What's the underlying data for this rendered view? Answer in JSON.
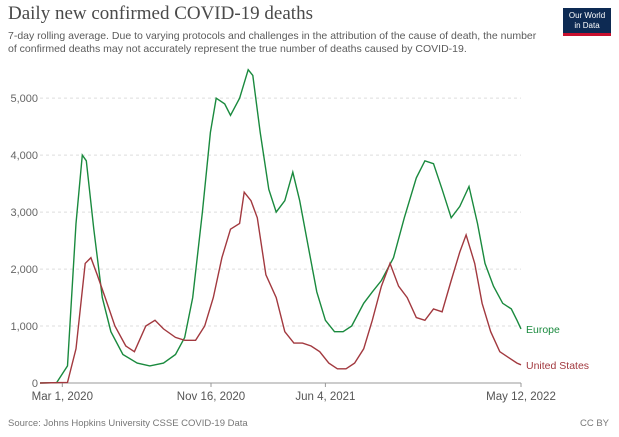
{
  "chart_data": {
    "type": "line",
    "title": "Daily new confirmed COVID-19 deaths",
    "subtitle": [
      "7-day rolling average. Due to varying protocols and challenges in the attribution of the cause of death, the number",
      "of confirmed deaths may not accurately represent the true number of deaths caused by COVID-19."
    ],
    "logo": [
      "Our World",
      "in Data"
    ],
    "source": "Source: Johns Hopkins University CSSE COVID-19 Data",
    "license": "CC BY",
    "xlim": [
      "2020-01-22",
      "2022-05-12"
    ],
    "xticks": [
      {
        "value": "2020-03-01",
        "label": "Mar 1, 2020"
      },
      {
        "value": "2020-11-16",
        "label": "Nov 16, 2020"
      },
      {
        "value": "2021-06-04",
        "label": "Jun 4, 2021"
      },
      {
        "value": "2022-05-12",
        "label": "May 12, 2022"
      }
    ],
    "ylim": [
      0,
      5600
    ],
    "yticks": [
      0,
      {
        "value": 1000,
        "label": "1,000"
      },
      {
        "value": 2000,
        "label": "2,000"
      },
      {
        "value": 3000,
        "label": "3,000"
      },
      {
        "value": 4000,
        "label": "4,000"
      },
      {
        "value": 5000,
        "label": "5,000"
      }
    ],
    "grid": true,
    "series": [
      {
        "name": "Europe",
        "color": "#1a8a3e",
        "x": [
          "2020-01-22",
          "2020-02-20",
          "2020-03-10",
          "2020-03-25",
          "2020-04-05",
          "2020-04-12",
          "2020-04-25",
          "2020-05-10",
          "2020-05-25",
          "2020-06-15",
          "2020-07-10",
          "2020-08-01",
          "2020-08-25",
          "2020-09-15",
          "2020-10-01",
          "2020-10-15",
          "2020-11-01",
          "2020-11-15",
          "2020-11-25",
          "2020-12-10",
          "2020-12-20",
          "2021-01-05",
          "2021-01-20",
          "2021-01-28",
          "2021-02-10",
          "2021-02-25",
          "2021-03-10",
          "2021-03-25",
          "2021-04-08",
          "2021-04-20",
          "2021-05-05",
          "2021-05-20",
          "2021-06-04",
          "2021-06-20",
          "2021-07-05",
          "2021-07-20",
          "2021-08-10",
          "2021-08-25",
          "2021-09-10",
          "2021-10-01",
          "2021-10-20",
          "2021-11-10",
          "2021-11-25",
          "2021-12-10",
          "2021-12-25",
          "2022-01-10",
          "2022-01-25",
          "2022-02-10",
          "2022-02-25",
          "2022-03-10",
          "2022-03-25",
          "2022-04-10",
          "2022-04-25",
          "2022-05-05",
          "2022-05-12"
        ],
        "values": [
          0,
          5,
          300,
          2800,
          4000,
          3900,
          2700,
          1500,
          900,
          500,
          350,
          300,
          350,
          500,
          800,
          1500,
          3000,
          4400,
          5000,
          4900,
          4700,
          5000,
          5500,
          5400,
          4400,
          3400,
          3000,
          3200,
          3700,
          3200,
          2400,
          1600,
          1100,
          900,
          900,
          1000,
          1400,
          1600,
          1800,
          2200,
          2900,
          3600,
          3900,
          3850,
          3400,
          2900,
          3100,
          3450,
          2800,
          2100,
          1700,
          1400,
          1300,
          1100,
          950
        ]
      },
      {
        "name": "United States",
        "color": "#a2393f",
        "x": [
          "2020-01-22",
          "2020-03-10",
          "2020-03-25",
          "2020-04-10",
          "2020-04-20",
          "2020-05-01",
          "2020-05-15",
          "2020-06-01",
          "2020-06-20",
          "2020-07-05",
          "2020-07-25",
          "2020-08-10",
          "2020-08-25",
          "2020-09-15",
          "2020-10-01",
          "2020-10-20",
          "2020-11-05",
          "2020-11-20",
          "2020-12-05",
          "2020-12-20",
          "2021-01-05",
          "2021-01-13",
          "2021-01-25",
          "2021-02-05",
          "2021-02-20",
          "2021-03-10",
          "2021-03-25",
          "2021-04-10",
          "2021-04-25",
          "2021-05-10",
          "2021-05-25",
          "2021-06-10",
          "2021-06-25",
          "2021-07-10",
          "2021-07-25",
          "2021-08-10",
          "2021-08-25",
          "2021-09-10",
          "2021-09-25",
          "2021-10-10",
          "2021-10-25",
          "2021-11-10",
          "2021-11-25",
          "2021-12-10",
          "2021-12-25",
          "2022-01-10",
          "2022-01-25",
          "2022-02-05",
          "2022-02-20",
          "2022-03-05",
          "2022-03-20",
          "2022-04-05",
          "2022-04-20",
          "2022-05-05",
          "2022-05-12"
        ],
        "values": [
          0,
          10,
          600,
          2100,
          2200,
          1900,
          1500,
          1000,
          650,
          550,
          1000,
          1100,
          950,
          800,
          750,
          750,
          1000,
          1500,
          2200,
          2700,
          2800,
          3350,
          3200,
          2900,
          1900,
          1500,
          900,
          700,
          700,
          650,
          550,
          350,
          250,
          250,
          350,
          600,
          1100,
          1700,
          2100,
          1700,
          1500,
          1150,
          1100,
          1300,
          1250,
          1800,
          2300,
          2600,
          2100,
          1400,
          900,
          550,
          450,
          350,
          320
        ]
      }
    ]
  }
}
